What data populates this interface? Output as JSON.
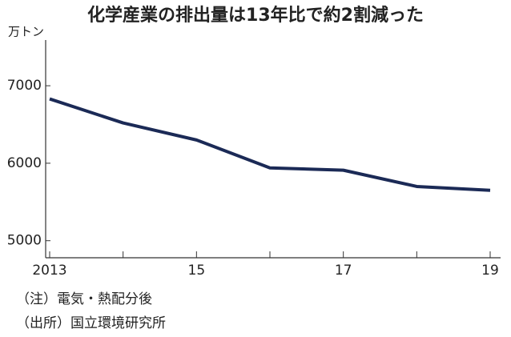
{
  "chart_data": {
    "type": "line",
    "title": "化学産業の排出量は13年比で約2割減った",
    "y_unit": "万トン",
    "x": [
      2013,
      2014,
      2015,
      2016,
      2017,
      2018,
      2019
    ],
    "series": [
      {
        "color": "#1b2a56",
        "values": [
          6830,
          6520,
          6300,
          5940,
          5910,
          5700,
          5650
        ]
      }
    ],
    "xlim": [
      2013,
      2019
    ],
    "xticks": [
      {
        "value": 2013,
        "label": "2013"
      },
      {
        "value": 2015,
        "label": "15"
      },
      {
        "value": 2017,
        "label": "17"
      },
      {
        "value": 2019,
        "label": "19"
      }
    ],
    "xminorticks": [
      2014,
      2016,
      2018
    ],
    "ylim": [
      4780,
      7590
    ],
    "yticks": [
      5000,
      6000,
      7000
    ],
    "notes": [
      "（注）電気・熱配分後",
      "（出所）国立環境研究所"
    ]
  }
}
